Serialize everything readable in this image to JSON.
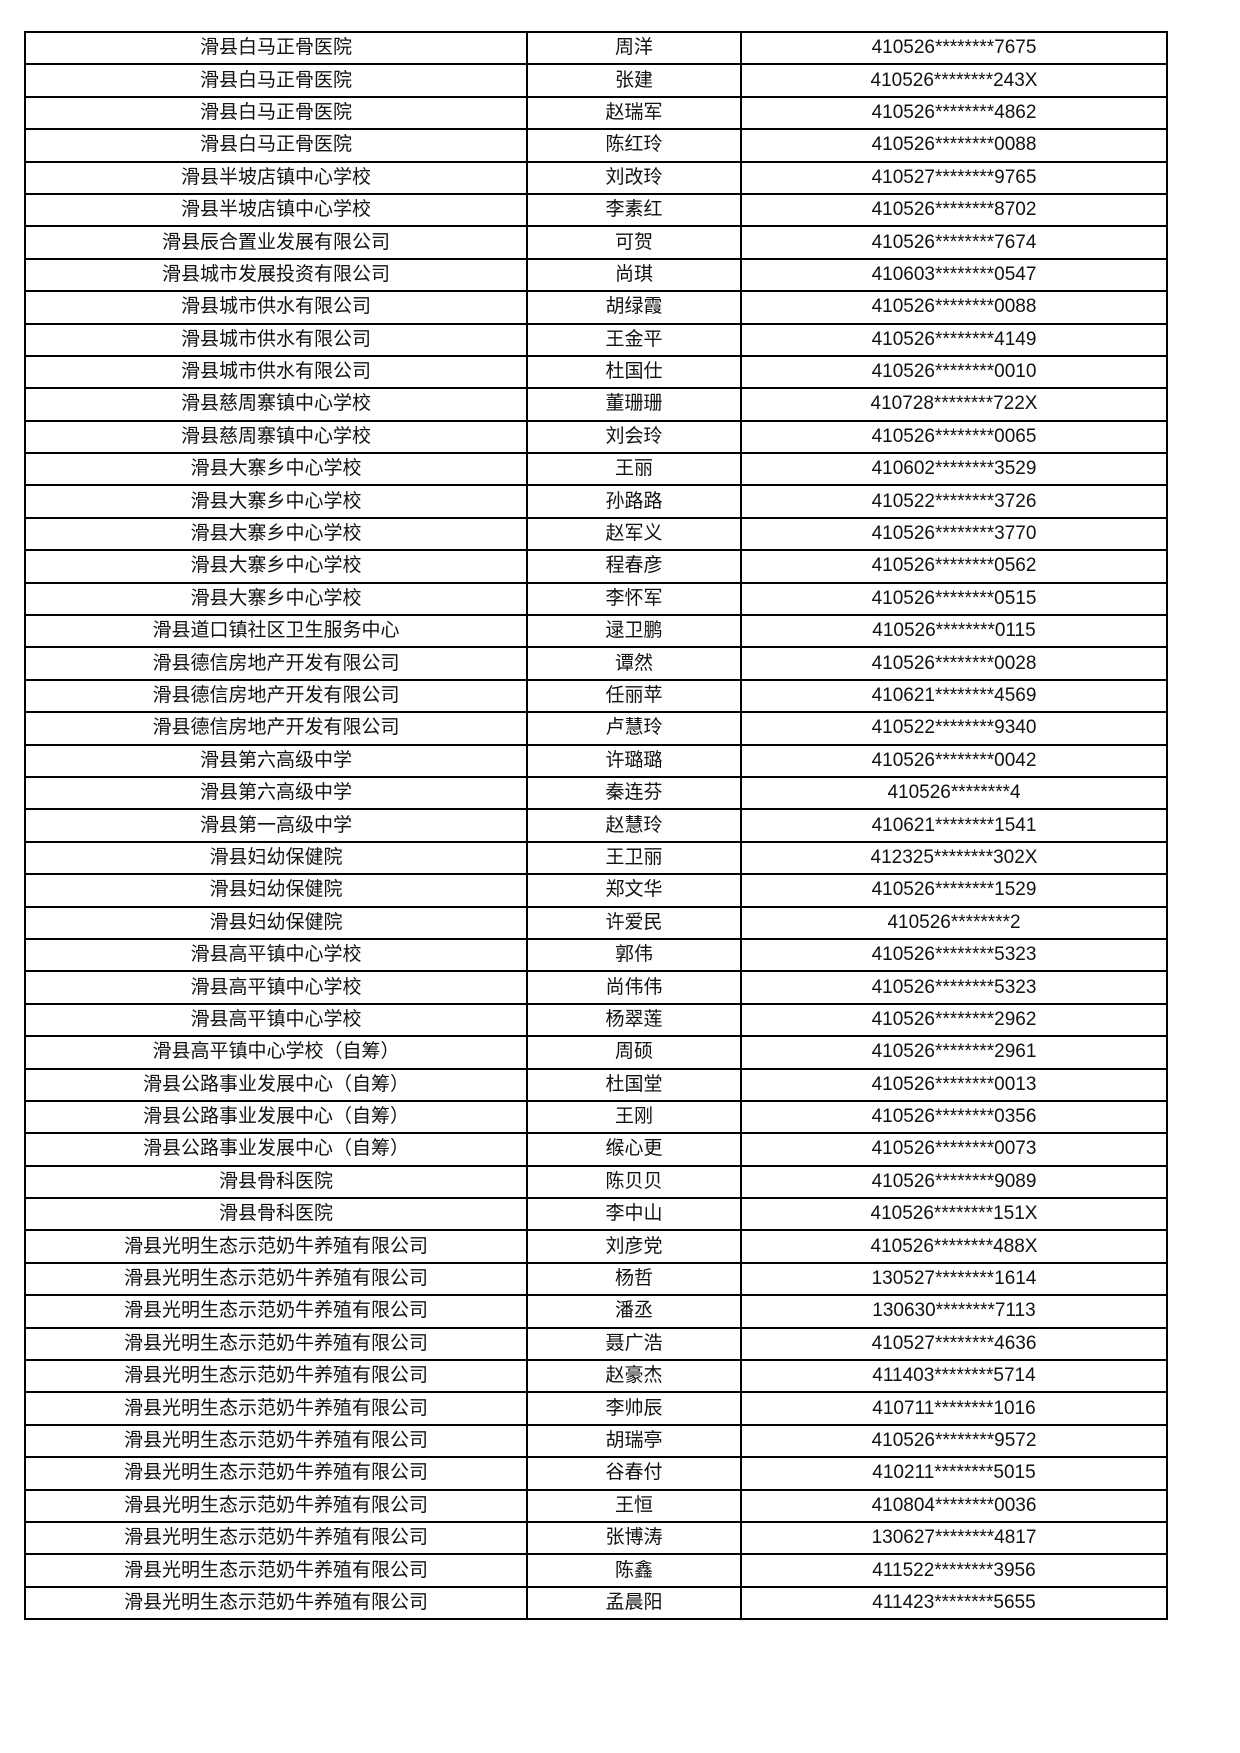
{
  "table": {
    "rows": [
      [
        "滑县白马正骨医院",
        "周洋",
        "410526********7675"
      ],
      [
        "滑县白马正骨医院",
        "张建",
        "410526********243X"
      ],
      [
        "滑县白马正骨医院",
        "赵瑞军",
        "410526********4862"
      ],
      [
        "滑县白马正骨医院",
        "陈红玲",
        "410526********0088"
      ],
      [
        "滑县半坡店镇中心学校",
        "刘改玲",
        "410527********9765"
      ],
      [
        "滑县半坡店镇中心学校",
        "李素红",
        "410526********8702"
      ],
      [
        "滑县辰合置业发展有限公司",
        "可贺",
        "410526********7674"
      ],
      [
        "滑县城市发展投资有限公司",
        "尚琪",
        "410603********0547"
      ],
      [
        "滑县城市供水有限公司",
        "胡绿霞",
        "410526********0088"
      ],
      [
        "滑县城市供水有限公司",
        "王金平",
        "410526********4149"
      ],
      [
        "滑县城市供水有限公司",
        "杜国仕",
        "410526********0010"
      ],
      [
        "滑县慈周寨镇中心学校",
        "董珊珊",
        "410728********722X"
      ],
      [
        "滑县慈周寨镇中心学校",
        "刘会玲",
        "410526********0065"
      ],
      [
        "滑县大寨乡中心学校",
        "王丽",
        "410602********3529"
      ],
      [
        "滑县大寨乡中心学校",
        "孙路路",
        "410522********3726"
      ],
      [
        "滑县大寨乡中心学校",
        "赵军义",
        "410526********3770"
      ],
      [
        "滑县大寨乡中心学校",
        "程春彦",
        "410526********0562"
      ],
      [
        "滑县大寨乡中心学校",
        "李怀军",
        "410526********0515"
      ],
      [
        "滑县道口镇社区卫生服务中心",
        "逯卫鹏",
        "410526********0115"
      ],
      [
        "滑县德信房地产开发有限公司",
        "谭然",
        "410526********0028"
      ],
      [
        "滑县德信房地产开发有限公司",
        "任丽苹",
        "410621********4569"
      ],
      [
        "滑县德信房地产开发有限公司",
        "卢慧玲",
        "410522********9340"
      ],
      [
        "滑县第六高级中学",
        "许璐璐",
        "410526********0042"
      ],
      [
        "滑县第六高级中学",
        "秦连芬",
        "410526********4"
      ],
      [
        "滑县第一高级中学",
        "赵慧玲",
        "410621********1541"
      ],
      [
        "滑县妇幼保健院",
        "王卫丽",
        "412325********302X"
      ],
      [
        "滑县妇幼保健院",
        "郑文华",
        "410526********1529"
      ],
      [
        "滑县妇幼保健院",
        "许爱民",
        "410526********2"
      ],
      [
        "滑县高平镇中心学校",
        "郭伟",
        "410526********5323"
      ],
      [
        "滑县高平镇中心学校",
        "尚伟伟",
        "410526********5323"
      ],
      [
        "滑县高平镇中心学校",
        "杨翠莲",
        "410526********2962"
      ],
      [
        "滑县高平镇中心学校（自筹）",
        "周硕",
        "410526********2961"
      ],
      [
        "滑县公路事业发展中心（自筹）",
        "杜国堂",
        "410526********0013"
      ],
      [
        "滑县公路事业发展中心（自筹）",
        "王刚",
        "410526********0356"
      ],
      [
        "滑县公路事业发展中心（自筹）",
        "缑心更",
        "410526********0073"
      ],
      [
        "滑县骨科医院",
        "陈贝贝",
        "410526********9089"
      ],
      [
        "滑县骨科医院",
        "李中山",
        "410526********151X"
      ],
      [
        "滑县光明生态示范奶牛养殖有限公司",
        "刘彦党",
        "410526********488X"
      ],
      [
        "滑县光明生态示范奶牛养殖有限公司",
        "杨哲",
        "130527********1614"
      ],
      [
        "滑县光明生态示范奶牛养殖有限公司",
        "潘丞",
        "130630********7113"
      ],
      [
        "滑县光明生态示范奶牛养殖有限公司",
        "聂广浩",
        "410527********4636"
      ],
      [
        "滑县光明生态示范奶牛养殖有限公司",
        "赵豪杰",
        "411403********5714"
      ],
      [
        "滑县光明生态示范奶牛养殖有限公司",
        "李帅辰",
        "410711********1016"
      ],
      [
        "滑县光明生态示范奶牛养殖有限公司",
        "胡瑞亭",
        "410526********9572"
      ],
      [
        "滑县光明生态示范奶牛养殖有限公司",
        "谷春付",
        "410211********5015"
      ],
      [
        "滑县光明生态示范奶牛养殖有限公司",
        "王恒",
        "410804********0036"
      ],
      [
        "滑县光明生态示范奶牛养殖有限公司",
        "张博涛",
        "130627********4817"
      ],
      [
        "滑县光明生态示范奶牛养殖有限公司",
        "陈鑫",
        "411522********3956"
      ],
      [
        "滑县光明生态示范奶牛养殖有限公司",
        "孟晨阳",
        "411423********5655"
      ]
    ]
  }
}
